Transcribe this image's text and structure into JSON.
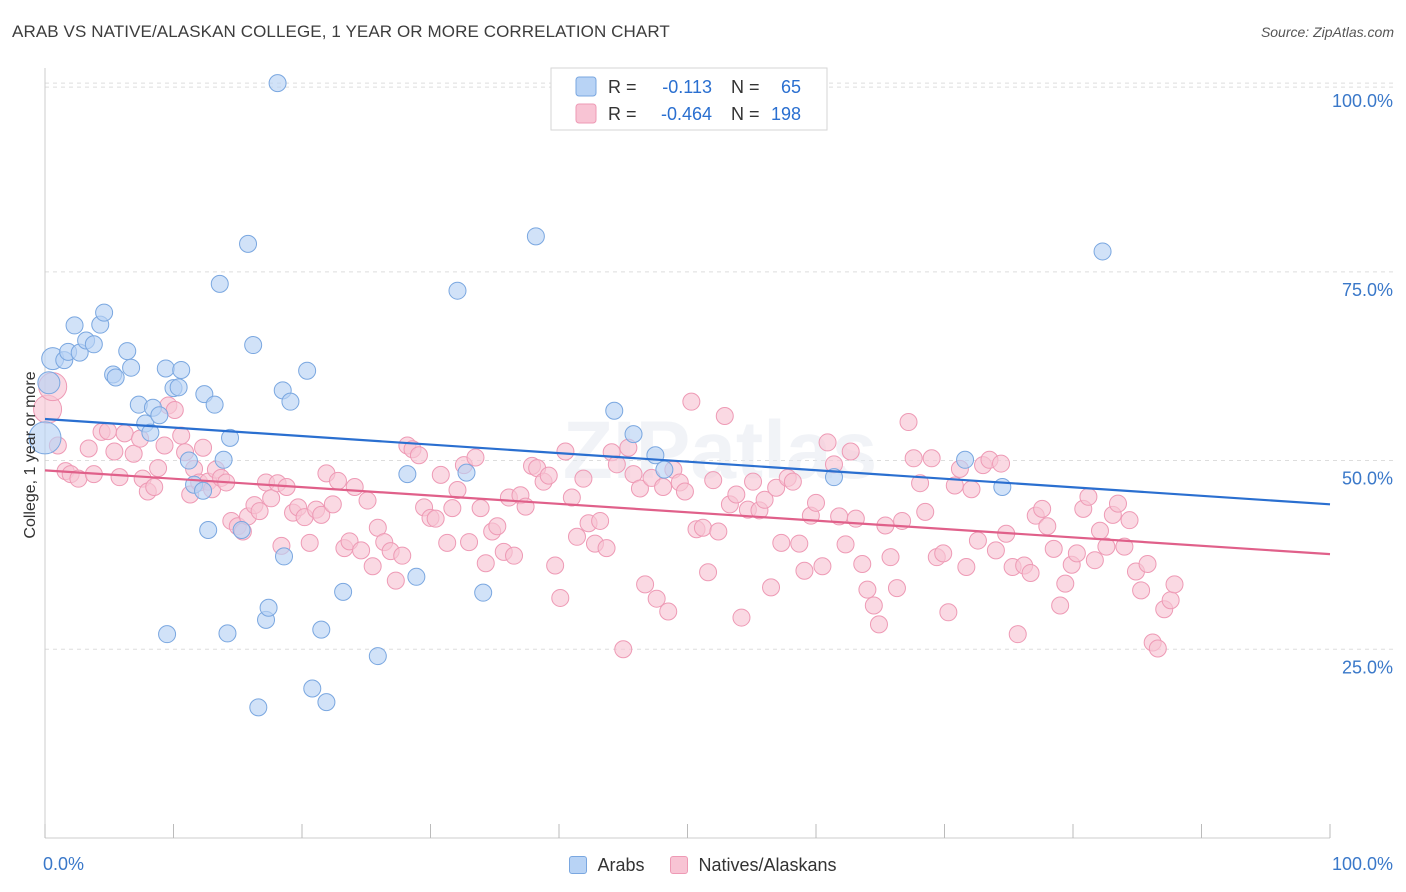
{
  "header": {
    "title": "ARAB VS NATIVE/ALASKAN COLLEGE, 1 YEAR OR MORE CORRELATION CHART",
    "source": "Source: ZipAtlas.com"
  },
  "watermark": "ZIPatlas",
  "colors": {
    "blue_fill": "#b8d3f5",
    "blue_stroke": "#7aa7e0",
    "blue_line": "#2a6fd0",
    "pink_fill": "#f8c4d4",
    "pink_stroke": "#ee9ab5",
    "pink_line": "#e0608a",
    "tick_label": "#3a78c9",
    "grid": "#dddddd"
  },
  "legend_box": {
    "rows": [
      {
        "r_label": "R =",
        "r_value": "-0.113",
        "n_label": "N =",
        "n_value": "65",
        "color": "blue"
      },
      {
        "r_label": "R =",
        "r_value": "-0.464",
        "n_label": "N =",
        "n_value": "198",
        "color": "pink"
      }
    ]
  },
  "bottom_legend": [
    {
      "label": "Arabs",
      "color": "blue"
    },
    {
      "label": "Natives/Alaskans",
      "color": "pink"
    }
  ],
  "chart_data": {
    "type": "scatter",
    "title": "ARAB VS NATIVE/ALASKAN COLLEGE, 1 YEAR OR MORE CORRELATION CHART",
    "xlabel": "",
    "ylabel": "College, 1 year or more",
    "xlim": [
      0,
      100
    ],
    "ylim": [
      0,
      102
    ],
    "x_tick_labels": [
      "0.0%",
      "100.0%"
    ],
    "y_ticks": [
      25,
      50,
      75,
      100
    ],
    "y_tick_labels": [
      "25.0%",
      "50.0%",
      "75.0%",
      "100.0%"
    ],
    "grid": true,
    "legend_position": "top-center",
    "series": [
      {
        "name": "Arabs",
        "color": "blue",
        "R": -0.113,
        "N": 65,
        "trend": [
          [
            0,
            55.5
          ],
          [
            100,
            44.2
          ]
        ],
        "points": [
          [
            0.0,
            53.0
          ],
          [
            0.6,
            63.5
          ],
          [
            1.5,
            63.3
          ],
          [
            1.8,
            64.4
          ],
          [
            2.3,
            67.9
          ],
          [
            2.7,
            64.3
          ],
          [
            3.2,
            65.9
          ],
          [
            3.8,
            65.4
          ],
          [
            4.3,
            68.0
          ],
          [
            4.6,
            69.6
          ],
          [
            5.3,
            61.4
          ],
          [
            5.5,
            61.0
          ],
          [
            6.4,
            64.5
          ],
          [
            6.7,
            62.3
          ],
          [
            7.3,
            57.4
          ],
          [
            7.8,
            54.9
          ],
          [
            8.2,
            53.7
          ],
          [
            8.4,
            57.0
          ],
          [
            8.9,
            56.0
          ],
          [
            9.4,
            62.2
          ],
          [
            9.5,
            27.0
          ],
          [
            10.0,
            59.6
          ],
          [
            10.4,
            59.7
          ],
          [
            10.6,
            62.0
          ],
          [
            11.2,
            50.0
          ],
          [
            11.6,
            46.8
          ],
          [
            12.3,
            46.0
          ],
          [
            12.4,
            58.8
          ],
          [
            12.7,
            40.8
          ],
          [
            13.2,
            57.4
          ],
          [
            13.6,
            73.4
          ],
          [
            13.9,
            50.1
          ],
          [
            14.2,
            27.1
          ],
          [
            14.4,
            53.0
          ],
          [
            15.3,
            40.8
          ],
          [
            15.8,
            78.7
          ],
          [
            16.2,
            65.3
          ],
          [
            16.6,
            17.3
          ],
          [
            17.2,
            28.9
          ],
          [
            17.4,
            30.5
          ],
          [
            18.1,
            100.0
          ],
          [
            18.5,
            59.3
          ],
          [
            18.6,
            37.3
          ],
          [
            19.1,
            57.8
          ],
          [
            20.4,
            61.9
          ],
          [
            20.8,
            19.8
          ],
          [
            21.5,
            27.6
          ],
          [
            21.9,
            18.0
          ],
          [
            23.2,
            32.6
          ],
          [
            25.9,
            24.1
          ],
          [
            28.2,
            48.2
          ],
          [
            28.9,
            34.6
          ],
          [
            32.1,
            72.5
          ],
          [
            32.8,
            48.4
          ],
          [
            34.1,
            32.5
          ],
          [
            38.2,
            79.7
          ],
          [
            44.3,
            56.6
          ],
          [
            45.8,
            53.5
          ],
          [
            48.2,
            48.8
          ],
          [
            61.4,
            47.8
          ],
          [
            71.6,
            50.1
          ],
          [
            74.5,
            46.5
          ],
          [
            82.3,
            77.7
          ],
          [
            0.3,
            60.3
          ],
          [
            47.5,
            50.7
          ]
        ],
        "sizes_note": "first point large"
      },
      {
        "name": "Natives/Alaskans",
        "color": "pink",
        "R": -0.464,
        "N": 198,
        "trend": [
          [
            0,
            48.7
          ],
          [
            100,
            37.6
          ]
        ],
        "points": [
          [
            0.2,
            56.8
          ],
          [
            0.6,
            59.8
          ],
          [
            1.0,
            52.0
          ],
          [
            1.6,
            48.6
          ],
          [
            2.0,
            48.2
          ],
          [
            2.6,
            47.6
          ],
          [
            3.4,
            51.6
          ],
          [
            3.8,
            48.2
          ],
          [
            4.4,
            53.8
          ],
          [
            4.9,
            53.9
          ],
          [
            5.4,
            51.2
          ],
          [
            5.8,
            47.8
          ],
          [
            6.2,
            53.6
          ],
          [
            6.9,
            50.9
          ],
          [
            7.4,
            52.9
          ],
          [
            7.6,
            47.6
          ],
          [
            8.0,
            45.9
          ],
          [
            8.5,
            46.5
          ],
          [
            8.8,
            49.0
          ],
          [
            9.3,
            52.0
          ],
          [
            9.6,
            57.3
          ],
          [
            10.1,
            56.7
          ],
          [
            10.6,
            53.3
          ],
          [
            10.9,
            51.1
          ],
          [
            11.3,
            45.5
          ],
          [
            11.6,
            48.9
          ],
          [
            12.0,
            47.1
          ],
          [
            12.3,
            51.7
          ],
          [
            12.7,
            47.2
          ],
          [
            13.0,
            46.2
          ],
          [
            13.3,
            48.8
          ],
          [
            13.7,
            47.7
          ],
          [
            14.1,
            47.1
          ],
          [
            14.5,
            42.0
          ],
          [
            15.0,
            41.3
          ],
          [
            15.4,
            40.6
          ],
          [
            15.8,
            42.6
          ],
          [
            16.3,
            44.1
          ],
          [
            16.7,
            43.3
          ],
          [
            17.2,
            47.1
          ],
          [
            17.6,
            45.0
          ],
          [
            18.1,
            47.0
          ],
          [
            18.4,
            38.7
          ],
          [
            18.8,
            46.5
          ],
          [
            19.3,
            43.1
          ],
          [
            19.7,
            43.8
          ],
          [
            20.2,
            42.5
          ],
          [
            20.6,
            39.1
          ],
          [
            21.1,
            43.5
          ],
          [
            21.5,
            42.8
          ],
          [
            21.9,
            48.3
          ],
          [
            22.4,
            44.2
          ],
          [
            22.8,
            47.3
          ],
          [
            23.3,
            38.4
          ],
          [
            23.7,
            39.3
          ],
          [
            24.1,
            46.5
          ],
          [
            24.6,
            38.1
          ],
          [
            25.1,
            44.7
          ],
          [
            25.5,
            36.0
          ],
          [
            25.9,
            41.1
          ],
          [
            26.4,
            39.2
          ],
          [
            26.9,
            38.0
          ],
          [
            27.3,
            34.1
          ],
          [
            27.8,
            37.4
          ],
          [
            28.2,
            52.0
          ],
          [
            28.6,
            51.5
          ],
          [
            29.1,
            50.7
          ],
          [
            29.5,
            43.8
          ],
          [
            30.0,
            42.4
          ],
          [
            30.4,
            42.3
          ],
          [
            30.8,
            48.1
          ],
          [
            31.3,
            39.1
          ],
          [
            31.7,
            43.7
          ],
          [
            32.1,
            46.1
          ],
          [
            32.6,
            49.4
          ],
          [
            33.0,
            39.2
          ],
          [
            33.5,
            50.4
          ],
          [
            33.9,
            43.7
          ],
          [
            34.3,
            36.4
          ],
          [
            34.8,
            40.6
          ],
          [
            35.2,
            41.3
          ],
          [
            35.7,
            37.9
          ],
          [
            36.1,
            45.1
          ],
          [
            36.5,
            37.4
          ],
          [
            37.0,
            45.4
          ],
          [
            37.4,
            43.9
          ],
          [
            37.9,
            49.3
          ],
          [
            38.3,
            49.0
          ],
          [
            38.8,
            47.2
          ],
          [
            39.2,
            48.0
          ],
          [
            39.7,
            36.1
          ],
          [
            40.1,
            31.8
          ],
          [
            40.5,
            51.2
          ],
          [
            41.0,
            45.1
          ],
          [
            41.4,
            39.9
          ],
          [
            41.9,
            47.6
          ],
          [
            42.3,
            41.7
          ],
          [
            42.8,
            39.0
          ],
          [
            43.2,
            42.0
          ],
          [
            43.7,
            38.4
          ],
          [
            44.1,
            51.1
          ],
          [
            44.5,
            49.5
          ],
          [
            45.0,
            25.0
          ],
          [
            45.4,
            51.7
          ],
          [
            45.8,
            48.2
          ],
          [
            46.3,
            46.3
          ],
          [
            46.7,
            33.6
          ],
          [
            47.2,
            47.7
          ],
          [
            47.6,
            31.7
          ],
          [
            48.1,
            46.5
          ],
          [
            48.5,
            30.0
          ],
          [
            48.9,
            48.8
          ],
          [
            49.4,
            47.1
          ],
          [
            49.8,
            45.9
          ],
          [
            50.3,
            57.8
          ],
          [
            50.7,
            40.9
          ],
          [
            51.2,
            41.1
          ],
          [
            51.6,
            35.2
          ],
          [
            52.0,
            47.4
          ],
          [
            52.4,
            40.6
          ],
          [
            52.9,
            55.9
          ],
          [
            53.3,
            44.2
          ],
          [
            53.8,
            45.5
          ],
          [
            54.2,
            29.2
          ],
          [
            54.7,
            43.5
          ],
          [
            55.1,
            47.2
          ],
          [
            55.6,
            43.4
          ],
          [
            56.0,
            44.8
          ],
          [
            56.5,
            33.2
          ],
          [
            56.9,
            46.4
          ],
          [
            57.3,
            39.1
          ],
          [
            57.8,
            47.7
          ],
          [
            58.2,
            47.2
          ],
          [
            58.7,
            39.0
          ],
          [
            59.1,
            35.4
          ],
          [
            59.6,
            42.7
          ],
          [
            60.0,
            44.4
          ],
          [
            60.5,
            36.0
          ],
          [
            60.9,
            52.4
          ],
          [
            61.4,
            49.5
          ],
          [
            61.8,
            42.6
          ],
          [
            62.3,
            38.9
          ],
          [
            62.7,
            51.2
          ],
          [
            63.1,
            42.3
          ],
          [
            63.6,
            36.3
          ],
          [
            64.0,
            32.9
          ],
          [
            64.5,
            30.8
          ],
          [
            64.9,
            28.3
          ],
          [
            65.4,
            41.4
          ],
          [
            65.8,
            37.2
          ],
          [
            66.3,
            33.1
          ],
          [
            66.7,
            42.0
          ],
          [
            67.2,
            55.1
          ],
          [
            67.6,
            50.3
          ],
          [
            68.1,
            47.0
          ],
          [
            68.5,
            43.2
          ],
          [
            69.0,
            50.3
          ],
          [
            69.4,
            37.2
          ],
          [
            69.9,
            37.7
          ],
          [
            70.3,
            29.9
          ],
          [
            70.8,
            46.7
          ],
          [
            71.2,
            48.9
          ],
          [
            71.7,
            35.9
          ],
          [
            72.1,
            46.2
          ],
          [
            72.6,
            39.4
          ],
          [
            73.0,
            49.4
          ],
          [
            73.5,
            50.1
          ],
          [
            74.0,
            38.1
          ],
          [
            74.4,
            49.6
          ],
          [
            74.8,
            40.3
          ],
          [
            75.3,
            35.9
          ],
          [
            75.7,
            27.0
          ],
          [
            76.2,
            36.1
          ],
          [
            76.7,
            35.1
          ],
          [
            77.1,
            42.7
          ],
          [
            77.6,
            43.6
          ],
          [
            78.0,
            41.3
          ],
          [
            78.5,
            38.3
          ],
          [
            79.0,
            30.8
          ],
          [
            79.4,
            33.7
          ],
          [
            79.9,
            36.2
          ],
          [
            80.3,
            37.7
          ],
          [
            80.8,
            43.6
          ],
          [
            81.2,
            45.2
          ],
          [
            81.7,
            36.8
          ],
          [
            82.1,
            40.7
          ],
          [
            82.6,
            38.6
          ],
          [
            83.1,
            42.8
          ],
          [
            83.5,
            44.3
          ],
          [
            84.0,
            38.6
          ],
          [
            84.4,
            42.1
          ],
          [
            84.9,
            35.3
          ],
          [
            85.3,
            32.8
          ],
          [
            85.8,
            36.3
          ],
          [
            86.2,
            25.9
          ],
          [
            86.6,
            25.1
          ],
          [
            87.1,
            30.3
          ],
          [
            87.6,
            31.5
          ],
          [
            87.9,
            33.6
          ]
        ]
      }
    ]
  }
}
